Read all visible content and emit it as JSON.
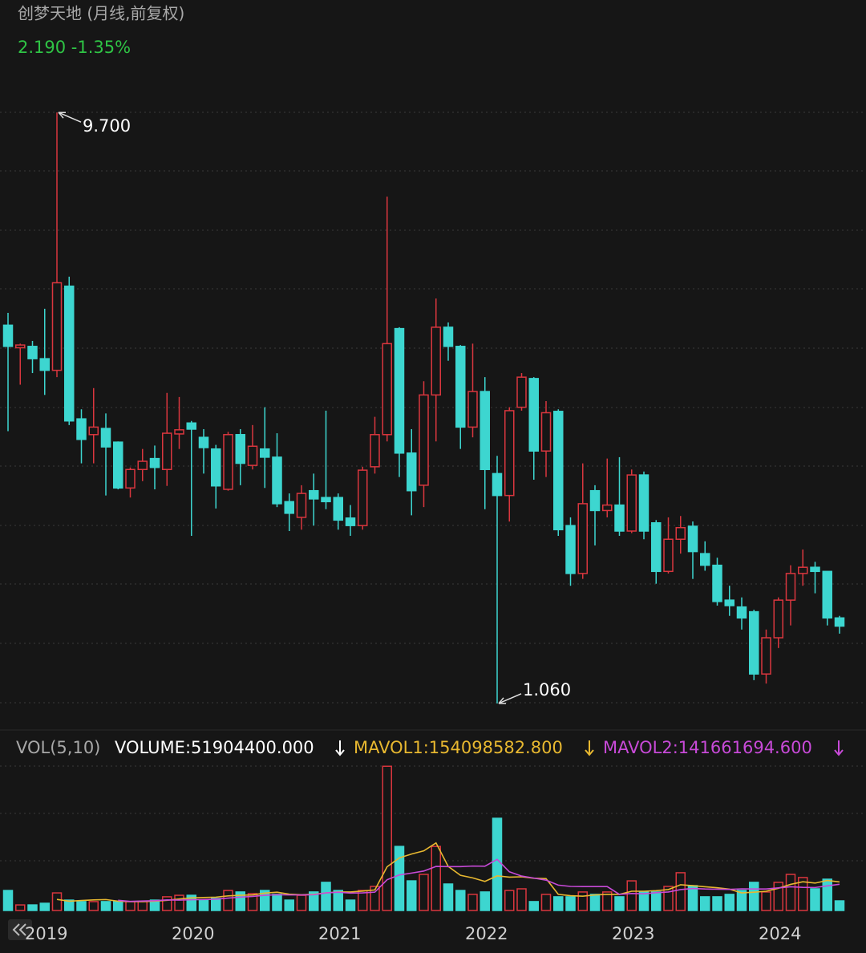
{
  "chart_data": [
    {
      "type": "candlestick",
      "title": "创梦天地 (月线,前复权)",
      "subtitle": "2.190 -1.35%",
      "categories": [
        null,
        null,
        null,
        "2019",
        null,
        null,
        null,
        null,
        null,
        null,
        null,
        null,
        null,
        null,
        null,
        "2020",
        null,
        null,
        null,
        null,
        null,
        null,
        null,
        null,
        null,
        null,
        null,
        "2021",
        null,
        null,
        null,
        null,
        null,
        null,
        null,
        null,
        null,
        null,
        null,
        "2022",
        null,
        null,
        null,
        null,
        null,
        null,
        null,
        null,
        null,
        null,
        null,
        "2023",
        null,
        null,
        null,
        null,
        null,
        null,
        null,
        null,
        null,
        null,
        null,
        "2024",
        null,
        null,
        null,
        null,
        null
      ],
      "open": [
        6.59,
        6.26,
        6.28,
        6.1,
        5.93,
        7.16,
        5.22,
        4.99,
        5.08,
        4.88,
        4.21,
        4.48,
        4.64,
        4.48,
        5.0,
        5.16,
        4.95,
        4.78,
        4.19,
        4.99,
        4.54,
        4.78,
        4.66,
        4.01,
        3.78,
        4.17,
        4.07,
        4.07,
        3.77,
        3.66,
        4.52,
        4.99,
        6.54,
        4.72,
        4.25,
        5.57,
        6.56,
        6.28,
        5.1,
        5.62,
        4.42,
        4.1,
        5.39,
        5.81,
        4.75,
        5.33,
        3.66,
        2.96,
        4.17,
        3.88,
        3.96,
        3.58,
        4.4,
        3.7,
        2.99,
        3.46,
        3.65,
        3.25,
        3.08,
        2.57,
        2.47,
        2.4,
        1.49,
        2.02,
        2.57,
        2.96,
        3.05,
        2.99,
        2.31
      ],
      "high": [
        6.77,
        6.32,
        6.36,
        6.83,
        9.7,
        7.3,
        5.36,
        5.67,
        5.3,
        4.89,
        4.51,
        4.78,
        4.83,
        5.6,
        5.54,
        5.19,
        5.07,
        4.84,
        5.03,
        5.07,
        5.13,
        5.39,
        5.01,
        4.13,
        4.25,
        4.42,
        5.34,
        4.13,
        3.96,
        4.52,
        5.25,
        8.47,
        6.56,
        5.07,
        5.77,
        6.98,
        6.63,
        6.3,
        6.32,
        5.83,
        4.68,
        5.39,
        5.89,
        5.83,
        5.48,
        5.36,
        3.78,
        4.57,
        4.25,
        4.64,
        4.66,
        4.48,
        4.45,
        3.74,
        3.78,
        3.8,
        3.72,
        3.43,
        3.19,
        2.78,
        2.61,
        2.43,
        2.14,
        2.61,
        3.08,
        3.31,
        3.13,
        2.99,
        2.34
      ],
      "low": [
        5.04,
        5.72,
        5.89,
        5.57,
        5.83,
        5.13,
        4.57,
        4.57,
        4.1,
        4.19,
        4.07,
        4.31,
        4.19,
        4.24,
        4.78,
        3.51,
        4.42,
        3.91,
        4.17,
        4.25,
        4.48,
        4.21,
        3.93,
        3.58,
        3.6,
        3.66,
        3.9,
        3.6,
        3.51,
        3.6,
        4.42,
        4.89,
        4.37,
        3.81,
        3.93,
        4.89,
        6.07,
        4.78,
        4.95,
        3.9,
        1.06,
        3.72,
        5.34,
        4.33,
        4.37,
        3.51,
        2.78,
        2.88,
        3.37,
        3.78,
        3.51,
        3.55,
        3.46,
        2.81,
        2.96,
        3.25,
        2.88,
        3.0,
        2.49,
        2.34,
        2.14,
        1.4,
        1.35,
        1.87,
        2.2,
        2.78,
        2.67,
        2.2,
        2.08
      ],
      "close": [
        6.28,
        6.3,
        6.1,
        5.93,
        7.21,
        5.19,
        4.92,
        5.1,
        4.81,
        4.21,
        4.48,
        4.6,
        4.51,
        5.01,
        5.06,
        5.07,
        4.8,
        4.24,
        4.99,
        4.57,
        4.82,
        4.66,
        3.98,
        3.84,
        4.13,
        4.05,
        4.01,
        3.74,
        3.66,
        4.47,
        4.99,
        6.32,
        4.72,
        4.17,
        5.57,
        6.56,
        6.28,
        5.1,
        5.62,
        4.48,
        4.1,
        5.34,
        5.83,
        4.75,
        5.31,
        3.6,
        2.96,
        3.98,
        3.88,
        3.96,
        3.58,
        4.4,
        3.58,
        2.99,
        3.46,
        3.63,
        3.28,
        3.08,
        2.55,
        2.49,
        2.31,
        1.49,
        2.02,
        2.57,
        2.96,
        3.05,
        2.99,
        2.31,
        2.19
      ],
      "ylim": [
        0.73,
        10.23
      ],
      "up_color": "#d9363e",
      "down_color": "#3dd6d0",
      "annotations": [
        {
          "value": 9.7,
          "label": "9.700"
        },
        {
          "value": 1.06,
          "label": "1.060"
        }
      ]
    },
    {
      "type": "volume",
      "title": "VOL(5,10)",
      "ylim": [
        0,
        780000000.0
      ],
      "series": [
        {
          "name": "VOLUME:51904400.000",
          "color": "#ffffff",
          "values": [
            108000000.0,
            30000000.0,
            30000000.0,
            39000000.0,
            95000000.0,
            56000000.0,
            48000000.0,
            48000000.0,
            48000000.0,
            48000000.0,
            48000000.0,
            48000000.0,
            56000000.0,
            74000000.0,
            82000000.0,
            82000000.0,
            56000000.0,
            65000000.0,
            108000000.0,
            100000000.0,
            91000000.0,
            108000000.0,
            87000000.0,
            56000000.0,
            82000000.0,
            100000000.0,
            152000000.0,
            108000000.0,
            56000000.0,
            108000000.0,
            130000000.0,
            779000000.0,
            346000000.0,
            160000000.0,
            195000000.0,
            346000000.0,
            143000000.0,
            108000000.0,
            87000000.0,
            100000000.0,
            498000000.0,
            108000000.0,
            117000000.0,
            48000000.0,
            87000000.0,
            74000000.0,
            74000000.0,
            100000000.0,
            87000000.0,
            100000000.0,
            74000000.0,
            160000000.0,
            100000000.0,
            100000000.0,
            130000000.0,
            204000000.0,
            134000000.0,
            74000000.0,
            74000000.0,
            87000000.0,
            108000000.0,
            152000000.0,
            100000000.0,
            152000000.0,
            195000000.0,
            178000000.0,
            117000000.0,
            169000000.0,
            51904400
          ]
        },
        {
          "name": "MAVOL1:154098582.800",
          "color": "#e8b830",
          "values": [
            null,
            null,
            null,
            null,
            60000000.0,
            50000000.0,
            54000000.0,
            57000000.0,
            59000000.0,
            50000000.0,
            48000000.0,
            48000000.0,
            50000000.0,
            55000000.0,
            62000000.0,
            68000000.0,
            70000000.0,
            72000000.0,
            79000000.0,
            82000000.0,
            84000000.0,
            94000000.0,
            99000000.0,
            88000000.0,
            85000000.0,
            87000000.0,
            95000000.0,
            100000000.0,
            100000000.0,
            105000000.0,
            111000000.0,
            236000000.0,
            284000000.0,
            305000000.0,
            322000000.0,
            365000000.0,
            238000000.0,
            190000000.0,
            176000000.0,
            157000000.0,
            187000000.0,
            180000000.0,
            182000000.0,
            174000000.0,
            172000000.0,
            87000000.0,
            80000000.0,
            77000000.0,
            84000000.0,
            87000000.0,
            87000000.0,
            104000000.0,
            104000000.0,
            107000000.0,
            113000000.0,
            139000000.0,
            134000000.0,
            128000000.0,
            123000000.0,
            115000000.0,
            95000000.0,
            99000000.0,
            104000000.0,
            120000000.0,
            141000000.0,
            155000000.0,
            148000000.0,
            162000000.0,
            154098582.8
          ]
        },
        {
          "name": "MAVOL2:141661694.600",
          "color": "#c84ad8",
          "values": [
            null,
            null,
            null,
            null,
            null,
            null,
            null,
            null,
            null,
            55000000.0,
            49000000.0,
            51000000.0,
            53000000.0,
            57000000.0,
            56000000.0,
            58000000.0,
            59000000.0,
            61000000.0,
            67000000.0,
            72000000.0,
            76000000.0,
            82000000.0,
            85000000.0,
            84000000.0,
            84000000.0,
            85000000.0,
            95000000.0,
            99000000.0,
            94000000.0,
            95000000.0,
            99000000.0,
            166000000.0,
            192000000.0,
            202000000.0,
            213000000.0,
            238000000.0,
            237000000.0,
            237000000.0,
            240000000.0,
            239000000.0,
            276000000.0,
            209000000.0,
            186000000.0,
            175000000.0,
            164000000.0,
            137000000.0,
            130000000.0,
            129000000.0,
            129000000.0,
            129000000.0,
            87000000.0,
            92000000.0,
            90000000.0,
            96000000.0,
            100000000.0,
            113000000.0,
            119000000.0,
            116000000.0,
            115000000.0,
            114000000.0,
            117000000.0,
            116000000.0,
            116000000.0,
            122000000.0,
            128000000.0,
            125000000.0,
            124000000.0,
            133000000.0,
            141661694.6
          ]
        }
      ]
    }
  ]
}
